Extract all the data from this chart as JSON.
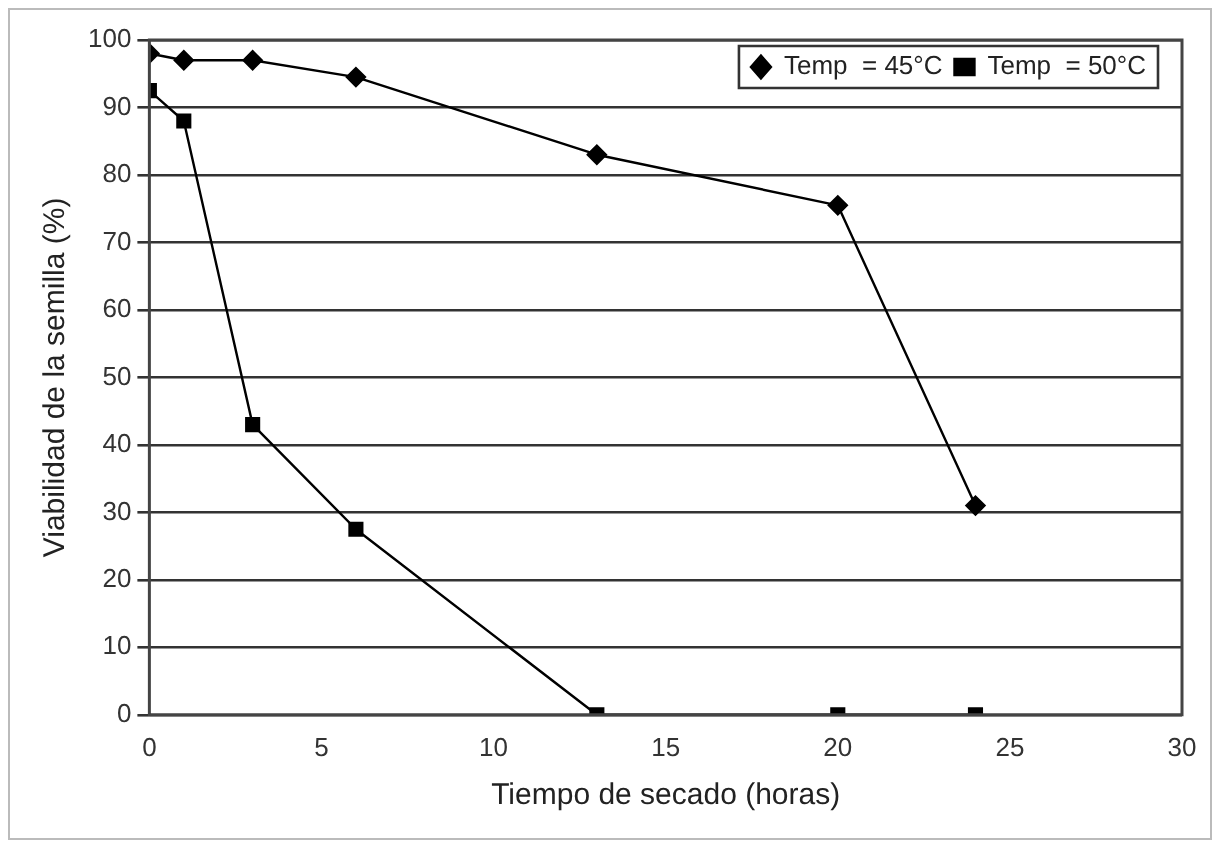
{
  "chart_data": {
    "type": "line",
    "xlabel": "Tiempo de secado (horas)",
    "ylabel": "Viabilidad de la semilla (%)",
    "x": [
      0,
      1,
      3,
      6,
      13,
      20,
      24
    ],
    "series": [
      {
        "name": "Temp  = 45°C",
        "color": "#000000",
        "marker": "diamond",
        "values": [
          98,
          97,
          97,
          94.5,
          83,
          75.5,
          31
        ]
      },
      {
        "name": "Temp  = 50°C",
        "color": "#000000",
        "marker": "square",
        "values": [
          92.5,
          88,
          43,
          27.5,
          0,
          0,
          0
        ]
      }
    ],
    "xlim": [
      0,
      30
    ],
    "xticks": [
      0,
      5,
      10,
      15,
      20,
      25,
      30
    ],
    "ylim": [
      0,
      100
    ],
    "yticks": [
      0,
      10,
      20,
      30,
      40,
      50,
      60,
      70,
      80,
      90,
      100
    ],
    "grid": "y",
    "legend": "top right",
    "line_style": "solid"
  }
}
